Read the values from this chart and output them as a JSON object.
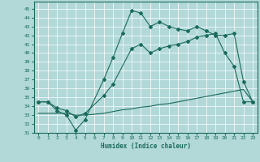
{
  "xlabel": "Humidex (Indice chaleur)",
  "background_color": "#b2d8d8",
  "grid_color": "#ffffff",
  "line_color": "#1a6b5a",
  "xlim": [
    -0.5,
    23.5
  ],
  "ylim": [
    31,
    45.8
  ],
  "yticks": [
    31,
    32,
    33,
    34,
    35,
    36,
    37,
    38,
    39,
    40,
    41,
    42,
    43,
    44,
    45
  ],
  "xticks": [
    0,
    1,
    2,
    3,
    4,
    5,
    6,
    7,
    8,
    9,
    10,
    11,
    12,
    13,
    14,
    15,
    16,
    17,
    18,
    19,
    20,
    21,
    22,
    23
  ],
  "series1_x": [
    0,
    1,
    2,
    3,
    4,
    5,
    7,
    8,
    9,
    10,
    11,
    12,
    13,
    14,
    15,
    16,
    17,
    18,
    19,
    20,
    21,
    22,
    23
  ],
  "series1_y": [
    34.5,
    34.5,
    33.5,
    33.0,
    31.3,
    32.5,
    37.0,
    39.5,
    42.2,
    44.8,
    44.5,
    43.0,
    43.5,
    43.0,
    42.7,
    42.5,
    43.0,
    42.5,
    42.0,
    42.0,
    42.2,
    36.8,
    34.5
  ],
  "series2_x": [
    0,
    1,
    2,
    3,
    4,
    5,
    7,
    8,
    10,
    11,
    12,
    13,
    14,
    15,
    16,
    17,
    18,
    19,
    20,
    21,
    22,
    23
  ],
  "series2_y": [
    34.5,
    34.5,
    33.8,
    33.5,
    32.8,
    33.2,
    35.2,
    36.5,
    40.5,
    41.0,
    40.0,
    40.5,
    40.8,
    41.0,
    41.3,
    41.8,
    42.0,
    42.2,
    40.0,
    38.5,
    34.5,
    34.5
  ],
  "series3_x": [
    0,
    1,
    2,
    3,
    4,
    5,
    6,
    7,
    8,
    9,
    10,
    11,
    12,
    13,
    14,
    15,
    16,
    17,
    18,
    19,
    20,
    21,
    22,
    23
  ],
  "series3_y": [
    33.2,
    33.2,
    33.2,
    33.2,
    33.0,
    33.0,
    33.1,
    33.2,
    33.4,
    33.6,
    33.7,
    33.9,
    34.0,
    34.2,
    34.3,
    34.5,
    34.7,
    34.9,
    35.1,
    35.3,
    35.5,
    35.7,
    35.9,
    34.5
  ]
}
